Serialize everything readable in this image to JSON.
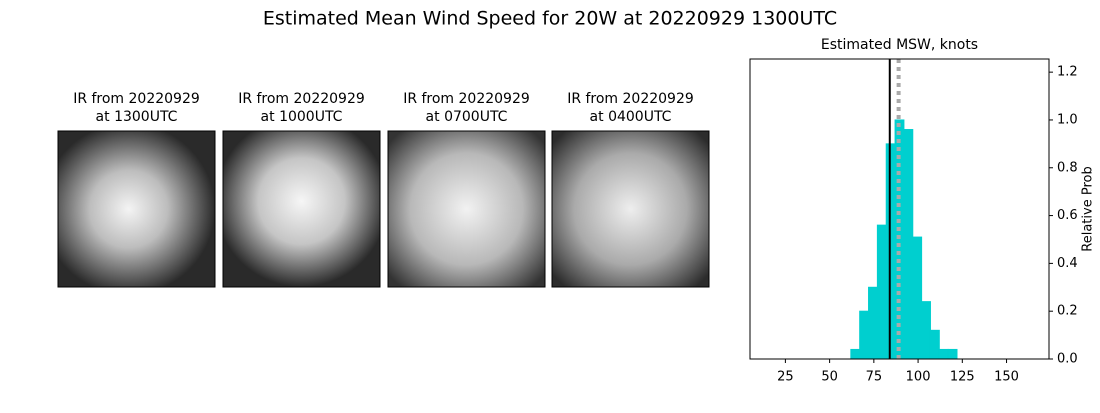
{
  "title": "Estimated Mean Wind Speed for 20W at 20220929 1300UTC",
  "panels": [
    {
      "title": [
        "IR from 20220929",
        "at 1300UTC"
      ]
    },
    {
      "title": [
        "IR from 20220929",
        "at 1000UTC"
      ]
    },
    {
      "title": [
        "IR from 20220929",
        "at 0700UTC"
      ]
    },
    {
      "title": [
        "IR from 20220929",
        "at 0400UTC"
      ]
    }
  ],
  "chart_data": {
    "type": "histogram",
    "title": "Estimated MSW, knots",
    "y_label": "Relative Prob",
    "bins": [
      17,
      22,
      27,
      32,
      37,
      42,
      47,
      52,
      57,
      62,
      67,
      72,
      77,
      82,
      87,
      92,
      97,
      102,
      107,
      112,
      117,
      122,
      127,
      132,
      137,
      142,
      147,
      152,
      157,
      162,
      167
    ],
    "values": [
      0,
      0,
      0,
      0,
      0,
      0,
      0,
      0,
      0,
      0.04,
      0.2,
      0.3,
      0.56,
      0.9,
      1.0,
      0.96,
      0.51,
      0.24,
      0.12,
      0.04,
      0.04,
      0,
      0,
      0,
      0,
      0,
      0,
      0,
      0,
      0
    ],
    "color": "#00cfcf",
    "xlim": [
      5,
      174
    ],
    "xticks": [
      25,
      50,
      75,
      100,
      125,
      150
    ],
    "ylim": [
      0,
      1.255
    ],
    "yticks": [
      {
        "value": 0,
        "label": "0.0"
      },
      {
        "value": 0.2,
        "label": "0.2"
      },
      {
        "value": 0.4,
        "label": "0.4"
      },
      {
        "value": 0.6,
        "label": "0.6"
      },
      {
        "value": 0.8,
        "label": "0.8"
      },
      {
        "value": 1.0,
        "label": "1.0"
      },
      {
        "value": 1.2,
        "label": "1.2"
      }
    ],
    "y_axis_side": "right",
    "vlines": [
      {
        "value": 84,
        "color": "#000000",
        "style": "solid"
      },
      {
        "value": 89,
        "color": "#aaaaaa",
        "style": "dotted"
      }
    ]
  }
}
